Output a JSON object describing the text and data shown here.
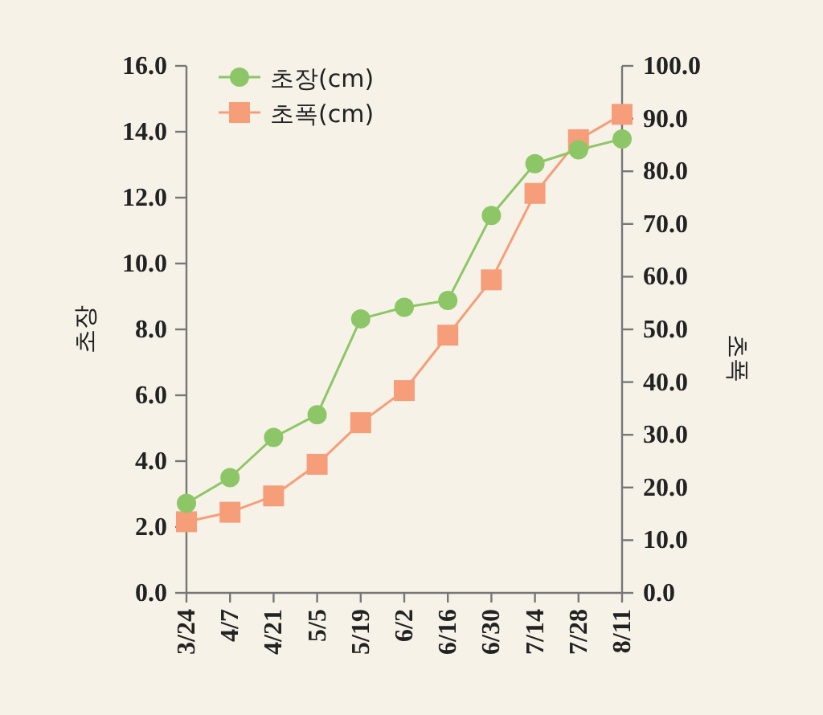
{
  "chart_data": {
    "type": "line",
    "categories": [
      "3/24",
      "4/7",
      "4/21",
      "5/5",
      "5/19",
      "6/2",
      "6/16",
      "6/30",
      "7/14",
      "7/28",
      "8/11"
    ],
    "ylabel": "초장",
    "y2label": "초폭",
    "ylim": [
      0,
      16
    ],
    "yticks": [
      {
        "value": 0,
        "label": "0.0"
      },
      {
        "value": 2,
        "label": "2.0"
      },
      {
        "value": 4,
        "label": "4.0"
      },
      {
        "value": 6,
        "label": "6.0"
      },
      {
        "value": 8,
        "label": "8.0"
      },
      {
        "value": 10,
        "label": "10.0"
      },
      {
        "value": 12,
        "label": "12.0"
      },
      {
        "value": 14,
        "label": "14.0"
      },
      {
        "value": 16,
        "label": "16.0"
      }
    ],
    "y2lim": [
      0,
      100
    ],
    "y2ticks": [
      {
        "value": 0,
        "label": "0.0"
      },
      {
        "value": 10,
        "label": "10.0"
      },
      {
        "value": 20,
        "label": "20.0"
      },
      {
        "value": 30,
        "label": "30.0"
      },
      {
        "value": 40,
        "label": "40.0"
      },
      {
        "value": 50,
        "label": "50.0"
      },
      {
        "value": 60,
        "label": "60.0"
      },
      {
        "value": 70,
        "label": "70.0"
      },
      {
        "value": 80,
        "label": "80.0"
      },
      {
        "value": 90,
        "label": "90.0"
      },
      {
        "value": 100,
        "label": "100.0"
      }
    ],
    "legend": "top left",
    "series": [
      {
        "name": "초장(cm)",
        "color": "#8dc666",
        "marker": "circle",
        "values": [
          2.72,
          3.5,
          4.72,
          5.41,
          8.32,
          8.67,
          8.88,
          11.46,
          13.03,
          13.45,
          13.78
        ]
      },
      {
        "name": "초폭(cm)",
        "color": "#f59e79",
        "marker": "square",
        "axis": "y2",
        "values": [
          13.5,
          15.3,
          18.4,
          24.4,
          32.3,
          38.4,
          48.9,
          59.4,
          75.8,
          86.0,
          90.8
        ]
      }
    ]
  }
}
